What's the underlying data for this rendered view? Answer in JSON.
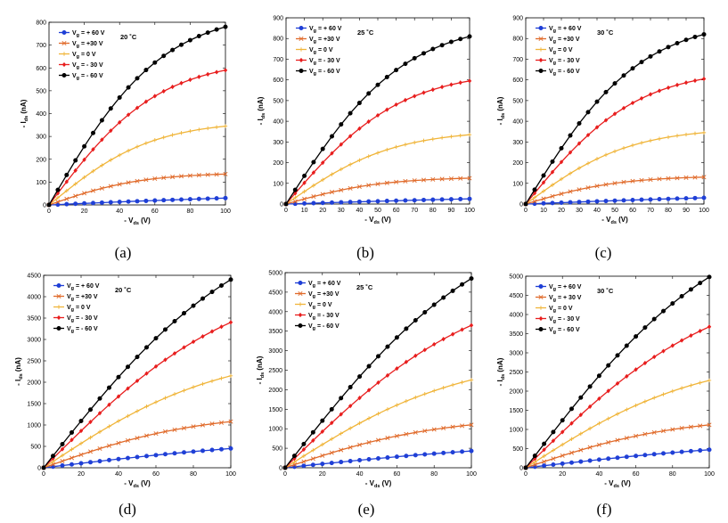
{
  "colors": {
    "vg_p60": "#1f3fd6",
    "vg_p30": "#e06a2a",
    "vg_0": "#f0b53a",
    "vg_m30": "#e81e1e",
    "vg_m60": "#000000"
  },
  "chart_data": [
    {
      "type": "line",
      "panel": "(a)",
      "temperature": "20 ˚C",
      "xlabel": {
        "main": "- V",
        "sub": "ds",
        "unit": " (V)"
      },
      "ylabel": {
        "main": "- I",
        "sub": "ds",
        "unit": " (nA)"
      },
      "xlim": [
        0,
        100
      ],
      "ylim": [
        0,
        800
      ],
      "xticks": [
        0,
        20,
        40,
        60,
        80,
        100
      ],
      "yticks": [
        0,
        100,
        200,
        300,
        400,
        500,
        600,
        700,
        800
      ],
      "series": [
        {
          "name": "+ 60 V",
          "label": {
            "main": "V",
            "sub": "g",
            "rest": " = + 60 V"
          },
          "color": "#1f3fd6",
          "marker": "circle",
          "sat": 30
        },
        {
          "name": "+30 V",
          "label": {
            "main": "V",
            "sub": "g",
            "rest": " = +30 V"
          },
          "color": "#e06a2a",
          "marker": "x",
          "sat": 135
        },
        {
          "name": "0 V",
          "label": {
            "main": "V",
            "sub": "g",
            "rest": " = 0 V"
          },
          "color": "#f0b53a",
          "marker": "plus",
          "sat": 345
        },
        {
          "name": "- 30 V",
          "label": {
            "main": "V",
            "sub": "g",
            "rest": " = - 30 V"
          },
          "color": "#e81e1e",
          "marker": "diamond",
          "sat": 590
        },
        {
          "name": "- 60 V",
          "label": {
            "main": "V",
            "sub": "g",
            "rest": " = - 60 V"
          },
          "color": "#000000",
          "marker": "circle",
          "sat": 780
        }
      ]
    },
    {
      "type": "line",
      "panel": "(b)",
      "temperature": "25 ˚C",
      "xlabel": {
        "main": "- V",
        "sub": "ds",
        "unit": " (V)"
      },
      "ylabel": {
        "main": "- I",
        "sub": "ds",
        "unit": " (nA)"
      },
      "xlim": [
        0,
        100
      ],
      "ylim": [
        0,
        900
      ],
      "xticks": [
        0,
        10,
        20,
        30,
        40,
        50,
        60,
        70,
        80,
        90,
        100
      ],
      "yticks": [
        0,
        100,
        200,
        300,
        400,
        500,
        600,
        700,
        800,
        900
      ],
      "series": [
        {
          "name": "+ 60 V",
          "label": {
            "main": "V",
            "sub": "g",
            "rest": " = + 60 V"
          },
          "color": "#1f3fd6",
          "marker": "circle",
          "sat": 25
        },
        {
          "name": "+30 V",
          "label": {
            "main": "V",
            "sub": "g",
            "rest": " = +30 V"
          },
          "color": "#e06a2a",
          "marker": "x",
          "sat": 125
        },
        {
          "name": "0 V",
          "label": {
            "main": "V",
            "sub": "g",
            "rest": " = 0 V"
          },
          "color": "#f0b53a",
          "marker": "plus",
          "sat": 335
        },
        {
          "name": "- 30 V",
          "label": {
            "main": "V",
            "sub": "g",
            "rest": " = - 30 V"
          },
          "color": "#e81e1e",
          "marker": "diamond",
          "sat": 595
        },
        {
          "name": "- 60 V",
          "label": {
            "main": "V",
            "sub": "g",
            "rest": " = - 60 V"
          },
          "color": "#000000",
          "marker": "circle",
          "sat": 810
        }
      ]
    },
    {
      "type": "line",
      "panel": "(c)",
      "temperature": "30 ˚C",
      "xlabel": {
        "main": "- V",
        "sub": "ds",
        "unit": " (V)"
      },
      "ylabel": {
        "main": "- I",
        "sub": "ds",
        "unit": " (nA)"
      },
      "xlim": [
        0,
        100
      ],
      "ylim": [
        0,
        900
      ],
      "xticks": [
        0,
        10,
        20,
        30,
        40,
        50,
        60,
        70,
        80,
        90,
        100
      ],
      "yticks": [
        0,
        100,
        200,
        300,
        400,
        500,
        600,
        700,
        800,
        900
      ],
      "series": [
        {
          "name": "+ 60 V",
          "label": {
            "main": "V",
            "sub": "g",
            "rest": " = + 60 V"
          },
          "color": "#1f3fd6",
          "marker": "circle",
          "sat": 30
        },
        {
          "name": "+30 V",
          "label": {
            "main": "V",
            "sub": "g",
            "rest": " = +30 V"
          },
          "color": "#e06a2a",
          "marker": "x",
          "sat": 130
        },
        {
          "name": "0 V",
          "label": {
            "main": "V",
            "sub": "g",
            "rest": " = 0 V"
          },
          "color": "#f0b53a",
          "marker": "plus",
          "sat": 345
        },
        {
          "name": "- 30 V",
          "label": {
            "main": "V",
            "sub": "g",
            "rest": " = - 30 V"
          },
          "color": "#e81e1e",
          "marker": "diamond",
          "sat": 605
        },
        {
          "name": "- 60 V",
          "label": {
            "main": "V",
            "sub": "g",
            "rest": " = - 60 V"
          },
          "color": "#000000",
          "marker": "circle",
          "sat": 820
        }
      ]
    },
    {
      "type": "line",
      "panel": "(d)",
      "temperature": "20 ˚C",
      "xlabel": {
        "main": "- V",
        "sub": "ds",
        "unit": " (V)"
      },
      "ylabel": {
        "main": "- I",
        "sub": "ds",
        "unit": " (nA)"
      },
      "xlim": [
        0,
        100
      ],
      "ylim": [
        0,
        4500
      ],
      "xticks": [
        0,
        20,
        40,
        60,
        80,
        100
      ],
      "yticks": [
        0,
        500,
        1000,
        1500,
        2000,
        2500,
        3000,
        3500,
        4000,
        4500
      ],
      "series": [
        {
          "name": "+ 60 V",
          "label": {
            "main": "V",
            "sub": "g",
            "rest": " = + 60 V"
          },
          "color": "#1f3fd6",
          "marker": "circle",
          "sat": 450
        },
        {
          "name": "+30 V",
          "label": {
            "main": "V",
            "sub": "g",
            "rest": " = +30 V"
          },
          "color": "#e06a2a",
          "marker": "x",
          "sat": 1080
        },
        {
          "name": "0 V",
          "label": {
            "main": "V",
            "sub": "g",
            "rest": " = 0 V"
          },
          "color": "#f0b53a",
          "marker": "plus",
          "sat": 2150
        },
        {
          "name": "- 30 V",
          "label": {
            "main": "V",
            "sub": "g",
            "rest": " = - 30 V"
          },
          "color": "#e81e1e",
          "marker": "diamond",
          "sat": 3400
        },
        {
          "name": "- 60 V",
          "label": {
            "main": "V",
            "sub": "g",
            "rest": " = - 60 V"
          },
          "color": "#000000",
          "marker": "circle",
          "sat": 4400
        }
      ]
    },
    {
      "type": "line",
      "panel": "(e)",
      "temperature": "25 ˚C",
      "xlabel": {
        "main": "- V",
        "sub": "ds",
        "unit": " (V)"
      },
      "ylabel": {
        "main": "- I",
        "sub": "ds",
        "unit": " (nA)"
      },
      "xlim": [
        0,
        100
      ],
      "ylim": [
        0,
        5000
      ],
      "xticks": [
        0,
        20,
        40,
        60,
        80,
        100
      ],
      "yticks": [
        0,
        500,
        1000,
        1500,
        2000,
        2500,
        3000,
        3500,
        4000,
        4500,
        5000
      ],
      "series": [
        {
          "name": "+ 60 V",
          "label": {
            "main": "V",
            "sub": "g",
            "rest": " = + 60 V"
          },
          "color": "#1f3fd6",
          "marker": "circle",
          "sat": 430
        },
        {
          "name": "+30 V",
          "label": {
            "main": "V",
            "sub": "g",
            "rest": " = +30 V"
          },
          "color": "#e06a2a",
          "marker": "x",
          "sat": 1100
        },
        {
          "name": "0 V",
          "label": {
            "main": "V",
            "sub": "g",
            "rest": " = 0 V"
          },
          "color": "#f0b53a",
          "marker": "plus",
          "sat": 2250
        },
        {
          "name": "- 30 V",
          "label": {
            "main": "V",
            "sub": "g",
            "rest": " = - 30 V"
          },
          "color": "#e81e1e",
          "marker": "diamond",
          "sat": 3650
        },
        {
          "name": "- 60 V",
          "label": {
            "main": "V",
            "sub": "g",
            "rest": " = - 60 V"
          },
          "color": "#000000",
          "marker": "circle",
          "sat": 4850
        }
      ]
    },
    {
      "type": "line",
      "panel": "(f)",
      "temperature": "30 ˚C",
      "xlabel": {
        "main": "- V",
        "sub": "ds",
        "unit": " (V)"
      },
      "ylabel": {
        "main": "- I",
        "sub": "ds",
        "unit": " (nA)"
      },
      "xlim": [
        0,
        100
      ],
      "ylim": [
        0,
        5000
      ],
      "xticks": [
        0,
        20,
        40,
        60,
        80,
        100
      ],
      "yticks": [
        0,
        500,
        1000,
        1500,
        2000,
        2500,
        3000,
        3500,
        4000,
        4500,
        5000
      ],
      "series": [
        {
          "name": "+ 60 V",
          "label": {
            "main": "V",
            "sub": "g",
            "rest": " = + 60 V"
          },
          "color": "#1f3fd6",
          "marker": "circle",
          "sat": 470
        },
        {
          "name": "+30 V",
          "label": {
            "main": "V",
            "sub": "g",
            "rest": " = + 30 V"
          },
          "color": "#e06a2a",
          "marker": "x",
          "sat": 1120
        },
        {
          "name": "0 V",
          "label": {
            "main": "V",
            "sub": "g",
            "rest": " = 0 V"
          },
          "color": "#f0b53a",
          "marker": "plus",
          "sat": 2280
        },
        {
          "name": "- 30 V",
          "label": {
            "main": "V",
            "sub": "g",
            "rest": " = - 30 V"
          },
          "color": "#e81e1e",
          "marker": "diamond",
          "sat": 3680
        },
        {
          "name": "- 60 V",
          "label": {
            "main": "V",
            "sub": "g",
            "rest": " = - 60 V"
          },
          "color": "#000000",
          "marker": "circle",
          "sat": 4980
        }
      ]
    }
  ]
}
